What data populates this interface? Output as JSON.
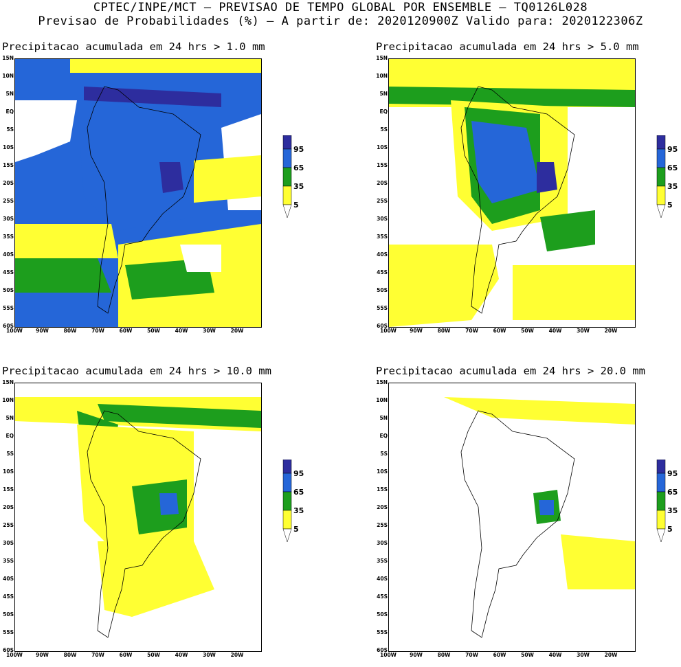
{
  "header": {
    "line1": "CPTEC/INPE/MCT – PREVISAO DE TEMPO GLOBAL POR ENSEMBLE – TQ0126L028",
    "line2": "Previsao de Probabilidades (%) –   A partir de: 2020120900Z  Valido para: 2020122306Z"
  },
  "axes": {
    "lat_labels": [
      "15N",
      "10N",
      "5N",
      "EQ",
      "5S",
      "10S",
      "15S",
      "20S",
      "25S",
      "30S",
      "35S",
      "40S",
      "45S",
      "50S",
      "55S",
      "60S"
    ],
    "lon_labels": [
      "100W",
      "90W",
      "80W",
      "70W",
      "60W",
      "50W",
      "40W",
      "30W",
      "20W"
    ]
  },
  "legend": {
    "levels": [
      "5",
      "35",
      "65",
      "95"
    ],
    "colors": {
      "c5": "#ffff33",
      "c35": "#1d9e1d",
      "c65": "#2566d8",
      "c95": "#2d2d9e",
      "none": "#ffffff"
    }
  },
  "panels": [
    {
      "title": "Precipitacao acumulada em 24 hrs > 1.0 mm"
    },
    {
      "title": "Precipitacao acumulada em 24 hrs > 5.0 mm"
    },
    {
      "title": "Precipitacao acumulada em 24 hrs > 10.0 mm"
    },
    {
      "title": "Precipitacao acumulada em 24 hrs > 20.0 mm"
    }
  ]
}
